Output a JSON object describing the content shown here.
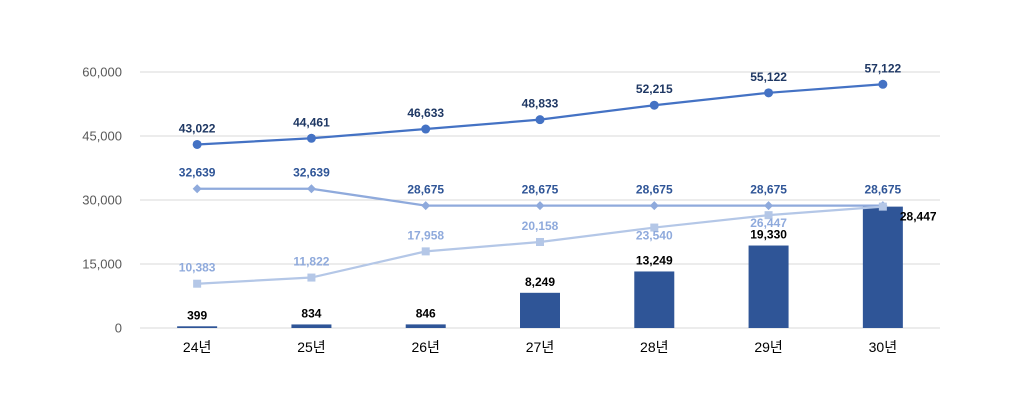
{
  "chart_data": {
    "type": "bar+line",
    "title": "",
    "xlabel": "",
    "ylabel": "",
    "categories": [
      "24년",
      "25년",
      "26년",
      "27년",
      "28년",
      "29년",
      "30년"
    ],
    "ylim": [
      0,
      60000
    ],
    "yticks": [
      0,
      15000,
      30000,
      45000,
      60000
    ],
    "ytick_labels": [
      "0",
      "15,000",
      "30,000",
      "45,000",
      "60,000"
    ],
    "grid": true,
    "legend": "none",
    "series": [
      {
        "kind": "bar",
        "color": "#2f5597",
        "label_color": "#000000",
        "values": [
          399,
          834,
          846,
          8249,
          13249,
          19330,
          28447
        ],
        "labels": [
          "399",
          "834",
          "846",
          "8,249",
          "13,249",
          "19,330",
          "28,447"
        ]
      },
      {
        "kind": "line",
        "marker": "circle",
        "color": "#4472c4",
        "label_color": "#1f3864",
        "values": [
          43022,
          44461,
          46633,
          48833,
          52215,
          55122,
          57122
        ],
        "labels": [
          "43,022",
          "44,461",
          "46,633",
          "48,833",
          "52,215",
          "55,122",
          "57,122"
        ]
      },
      {
        "kind": "line",
        "marker": "diamond",
        "color": "#8faadc",
        "label_color": "#2f5597",
        "values": [
          32639,
          32639,
          28675,
          28675,
          28675,
          28675,
          28675
        ],
        "labels": [
          "32,639",
          "32,639",
          "28,675",
          "28,675",
          "28,675",
          "28,675",
          "28,675"
        ]
      },
      {
        "kind": "line",
        "marker": "square",
        "color": "#b4c7e7",
        "label_color": "#8faadc",
        "values": [
          10383,
          11822,
          17958,
          20158,
          23540,
          26447,
          28447
        ],
        "labels": [
          "10,383",
          "11,822",
          "17,958",
          "20,158",
          "23,540",
          "26,447",
          ""
        ]
      }
    ]
  }
}
